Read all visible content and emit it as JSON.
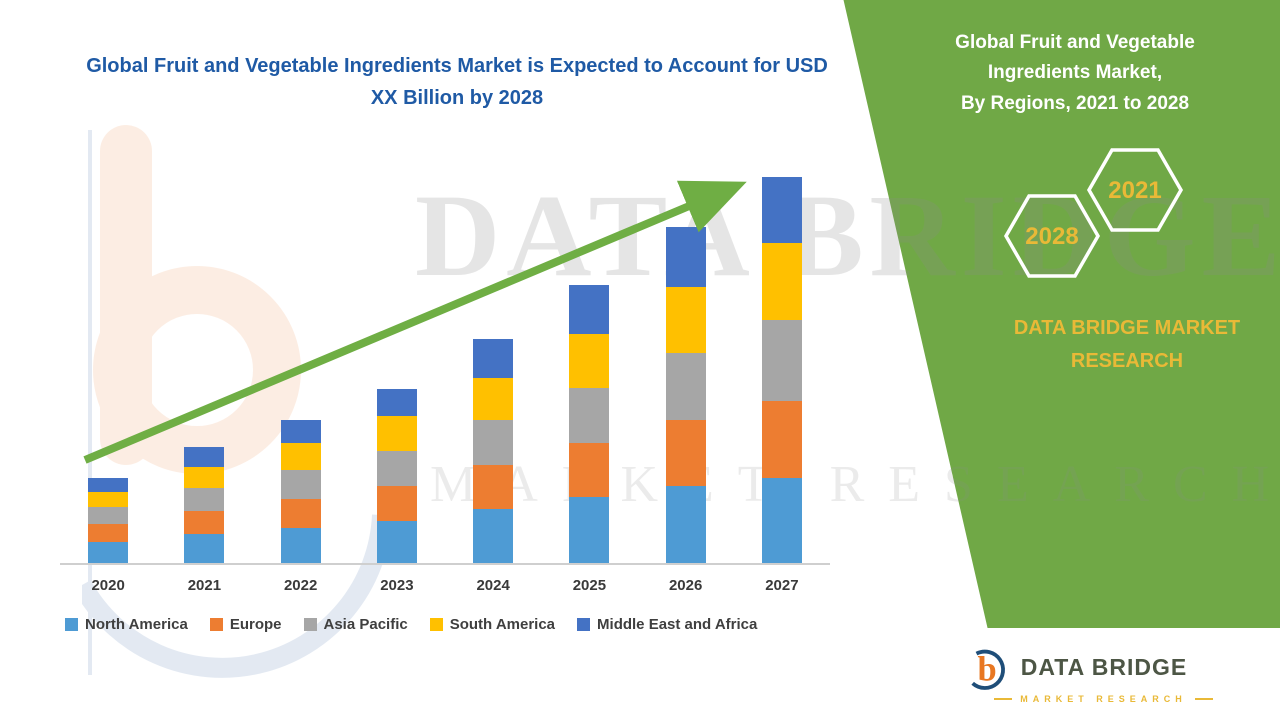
{
  "headline": "Global Fruit and Vegetable Ingredients Market is Expected to Account for USD XX Billion by 2028",
  "side_panel": {
    "heading": "Global Fruit and Vegetable Ingredients Market,\nBy Regions, 2021 to 2028",
    "hexagons": [
      {
        "year": "2028"
      },
      {
        "year": "2021"
      }
    ],
    "brand": "DATA BRIDGE MARKET RESEARCH"
  },
  "watermark": {
    "line1": "DATA BRIDGE",
    "line2": "MARKET RESEARCH"
  },
  "logo": {
    "name": "DATA BRIDGE",
    "tagline": "MARKET RESEARCH"
  },
  "colors": {
    "panel_green": "#70A846",
    "headline_blue": "#1F5AA5",
    "accent_yellow": "#E9B937",
    "arrow_green": "#6FAE44"
  },
  "chart_data": {
    "type": "bar",
    "stacked": true,
    "title": "Global Fruit and Vegetable Ingredients Market is Expected to Account for USD XX Billion by 2028",
    "xlabel": "",
    "ylabel": "",
    "ylim": [
      0,
      105
    ],
    "grid": false,
    "legend_position": "bottom",
    "categories": [
      "2020",
      "2021",
      "2022",
      "2023",
      "2024",
      "2025",
      "2026",
      "2027"
    ],
    "series": [
      {
        "name": "North America",
        "color": "#4E9BD4",
        "values": [
          5.5,
          7.5,
          9,
          11,
          14,
          17,
          20,
          22
        ]
      },
      {
        "name": "Europe",
        "color": "#ED7D31",
        "values": [
          4.5,
          6,
          7.5,
          9,
          11.5,
          14,
          17,
          20
        ]
      },
      {
        "name": "Asia Pacific",
        "color": "#A6A6A6",
        "values": [
          4.5,
          6,
          7.5,
          9,
          11.5,
          14.5,
          17.5,
          21
        ]
      },
      {
        "name": "South America",
        "color": "#FFC000",
        "values": [
          4,
          5.5,
          7,
          9,
          11,
          14,
          17,
          20
        ]
      },
      {
        "name": "Middle East and Africa",
        "color": "#4472C4",
        "values": [
          3.5,
          5,
          6,
          7,
          10,
          12.5,
          15.5,
          17
        ]
      }
    ],
    "annotations": [
      "upward trend arrow from 2020 to 2027"
    ]
  }
}
